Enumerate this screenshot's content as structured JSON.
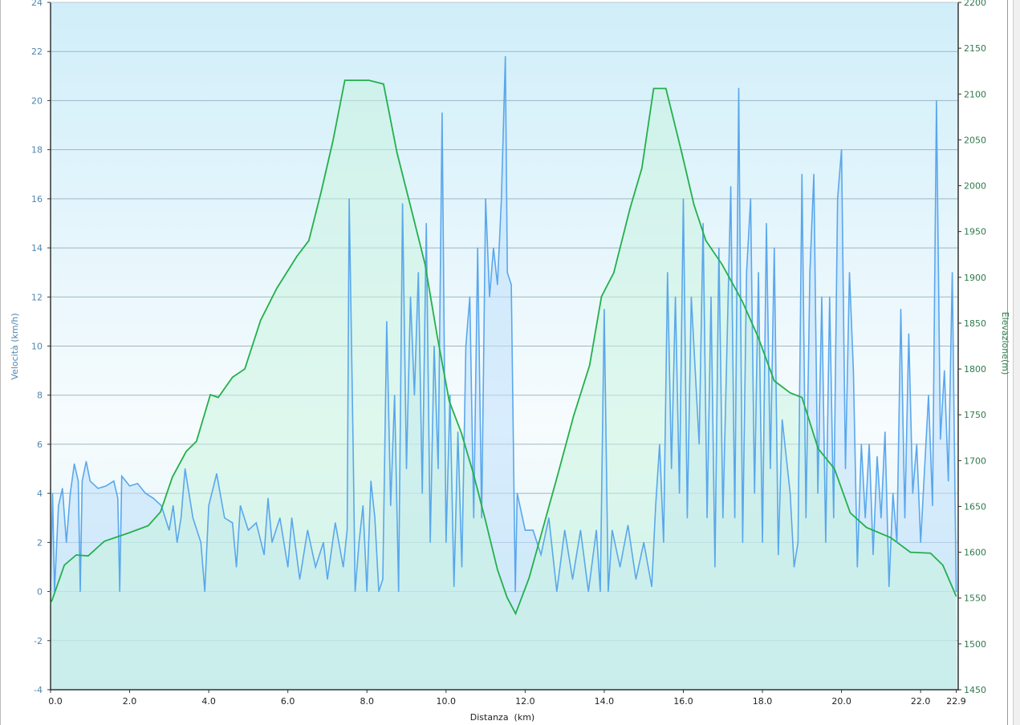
{
  "chart_data": {
    "type": "line",
    "xlabel": "Distanza  (km)",
    "ylabel": "Velocità (km/h)",
    "y2label": "Elevazione(m)",
    "xlim": [
      0,
      22.95
    ],
    "ylim": [
      -4,
      24
    ],
    "y2lim": [
      1450,
      2200
    ],
    "x_ticks": [
      "0.0",
      "2.0",
      "4.0",
      "6.0",
      "8.0",
      "10.0",
      "12.0",
      "14.0",
      "16.0",
      "18.0",
      "20.0",
      "22.0",
      "22.9"
    ],
    "x_tick_values": [
      0,
      2,
      4,
      6,
      8,
      10,
      12,
      14,
      16,
      18,
      20,
      22,
      22.9
    ],
    "y_ticks": [
      -4,
      -2,
      0,
      2,
      4,
      6,
      8,
      10,
      12,
      14,
      16,
      18,
      20,
      22,
      24
    ],
    "y2_ticks": [
      1450,
      1500,
      1550,
      1600,
      1650,
      1700,
      1750,
      1800,
      1850,
      1900,
      1950,
      2000,
      2050,
      2100,
      2150,
      2200
    ],
    "grid": true,
    "colors": {
      "speed": "#5aa7ec",
      "elevation": "#22b04b",
      "left_axis_text": "#4f86b0",
      "right_axis_text": "#2f7a4d"
    },
    "series": [
      {
        "name": "Velocità",
        "axis": "left",
        "x": [
          0.0,
          0.05,
          0.1,
          0.2,
          0.3,
          0.4,
          0.5,
          0.6,
          0.7,
          0.75,
          0.8,
          0.9,
          1.0,
          1.2,
          1.4,
          1.6,
          1.7,
          1.75,
          1.8,
          2.0,
          2.2,
          2.4,
          2.6,
          2.8,
          3.0,
          3.1,
          3.2,
          3.3,
          3.4,
          3.6,
          3.8,
          3.9,
          4.0,
          4.2,
          4.4,
          4.6,
          4.7,
          4.8,
          5.0,
          5.2,
          5.4,
          5.5,
          5.6,
          5.8,
          6.0,
          6.1,
          6.3,
          6.5,
          6.7,
          6.9,
          7.0,
          7.2,
          7.4,
          7.5,
          7.55,
          7.65,
          7.7,
          7.8,
          7.9,
          8.0,
          8.1,
          8.2,
          8.3,
          8.4,
          8.5,
          8.6,
          8.7,
          8.8,
          8.9,
          9.0,
          9.1,
          9.2,
          9.3,
          9.4,
          9.5,
          9.6,
          9.7,
          9.8,
          9.9,
          10.0,
          10.1,
          10.2,
          10.3,
          10.4,
          10.5,
          10.6,
          10.7,
          10.8,
          10.9,
          11.0,
          11.1,
          11.2,
          11.3,
          11.4,
          11.5,
          11.55,
          11.65,
          11.75,
          11.8,
          12.0,
          12.2,
          12.4,
          12.6,
          12.8,
          13.0,
          13.2,
          13.4,
          13.6,
          13.8,
          13.9,
          14.0,
          14.1,
          14.2,
          14.4,
          14.6,
          14.8,
          15.0,
          15.2,
          15.3,
          15.4,
          15.5,
          15.6,
          15.7,
          15.8,
          15.9,
          16.0,
          16.1,
          16.2,
          16.4,
          16.5,
          16.6,
          16.7,
          16.8,
          16.9,
          17.0,
          17.2,
          17.3,
          17.4,
          17.5,
          17.6,
          17.7,
          17.8,
          17.9,
          18.0,
          18.1,
          18.2,
          18.3,
          18.4,
          18.5,
          18.7,
          18.8,
          18.9,
          19.0,
          19.1,
          19.2,
          19.3,
          19.4,
          19.5,
          19.6,
          19.7,
          19.8,
          19.9,
          20.0,
          20.1,
          20.2,
          20.3,
          20.4,
          20.5,
          20.6,
          20.7,
          20.8,
          20.9,
          21.0,
          21.1,
          21.2,
          21.3,
          21.4,
          21.5,
          21.6,
          21.7,
          21.8,
          21.9,
          22.0,
          22.1,
          22.2,
          22.3,
          22.4,
          22.5,
          22.6,
          22.7,
          22.8,
          22.9
        ],
        "values": [
          0,
          4,
          0,
          3.5,
          4.2,
          2,
          4,
          5.2,
          4.5,
          0,
          4.5,
          5.3,
          4.5,
          4.2,
          4.3,
          4.5,
          3.8,
          0,
          4.7,
          4.3,
          4.4,
          4,
          3.8,
          3.5,
          2.5,
          3.5,
          2,
          3,
          5,
          3,
          2,
          0,
          3.5,
          4.8,
          3,
          2.8,
          1,
          3.5,
          2.5,
          2.8,
          1.5,
          3.8,
          2,
          3,
          1,
          3,
          0.5,
          2.5,
          1,
          2,
          0.5,
          2.8,
          1,
          2.5,
          16,
          6,
          0,
          2,
          3.5,
          0,
          4.5,
          3,
          0,
          0.5,
          11,
          3.5,
          8,
          0,
          15.8,
          5,
          12,
          8,
          13,
          4,
          15,
          2,
          10,
          5,
          19.5,
          2,
          8,
          0.2,
          6.5,
          1,
          10,
          12,
          3,
          14,
          3,
          16,
          12,
          14,
          12.5,
          16,
          21.8,
          13,
          12.5,
          0,
          4,
          2.5,
          2.5,
          1.5,
          3,
          0,
          2.5,
          0.5,
          2.5,
          0,
          2.5,
          0,
          11.5,
          0,
          2.5,
          1,
          2.7,
          0.5,
          2,
          0.2,
          3.5,
          6,
          2,
          13,
          5,
          12,
          4,
          16,
          3,
          12,
          6,
          15,
          3,
          12,
          1,
          14,
          3,
          16.5,
          3,
          20.5,
          2,
          13,
          16,
          4,
          13,
          2,
          15,
          5,
          14,
          1.5,
          7,
          4,
          1,
          2,
          17,
          3,
          13,
          17,
          4,
          12,
          2,
          12,
          3,
          16,
          18,
          5,
          13,
          9,
          1,
          6,
          3,
          6,
          1.5,
          5.5,
          3,
          6.5,
          0.2,
          4,
          2,
          11.5,
          3,
          10.5,
          4,
          6,
          2,
          5,
          8,
          3.5,
          20,
          6.2,
          9,
          4.5,
          13,
          0
        ]
      },
      {
        "name": "Elevazione",
        "axis": "right",
        "x": [
          0.0,
          0.04,
          0.35,
          0.65,
          0.95,
          1.36,
          1.97,
          2.47,
          2.78,
          3.08,
          3.43,
          3.69,
          4.04,
          4.24,
          4.6,
          4.91,
          5.31,
          5.72,
          6.23,
          6.53,
          6.84,
          7.14,
          7.44,
          8.05,
          8.42,
          8.76,
          9.17,
          9.47,
          9.78,
          10.08,
          10.39,
          10.69,
          11.0,
          11.3,
          11.54,
          11.76,
          12.1,
          12.5,
          12.82,
          13.22,
          13.63,
          13.93,
          14.24,
          14.65,
          14.95,
          15.25,
          15.56,
          15.96,
          16.27,
          16.57,
          16.98,
          17.49,
          17.89,
          18.3,
          18.7,
          19.0,
          19.41,
          19.82,
          20.22,
          20.63,
          21.24,
          21.74,
          22.25,
          22.56,
          22.9
        ],
        "values": [
          1545,
          1548,
          1586,
          1597,
          1596,
          1612,
          1621,
          1629,
          1644,
          1682,
          1710,
          1721,
          1772,
          1769,
          1791,
          1800,
          1853,
          1888,
          1923,
          1940,
          1993,
          2049,
          2115,
          2115,
          2111,
          2036,
          1966,
          1914,
          1835,
          1765,
          1730,
          1686,
          1634,
          1581,
          1551,
          1533,
          1572,
          1634,
          1684,
          1748,
          1804,
          1879,
          1905,
          1975,
          2019,
          2106,
          2106,
          2036,
          1979,
          1940,
          1914,
          1874,
          1835,
          1787,
          1774,
          1769,
          1713,
          1691,
          1643,
          1627,
          1616,
          1600,
          1599,
          1586,
          1552
        ]
      }
    ]
  }
}
